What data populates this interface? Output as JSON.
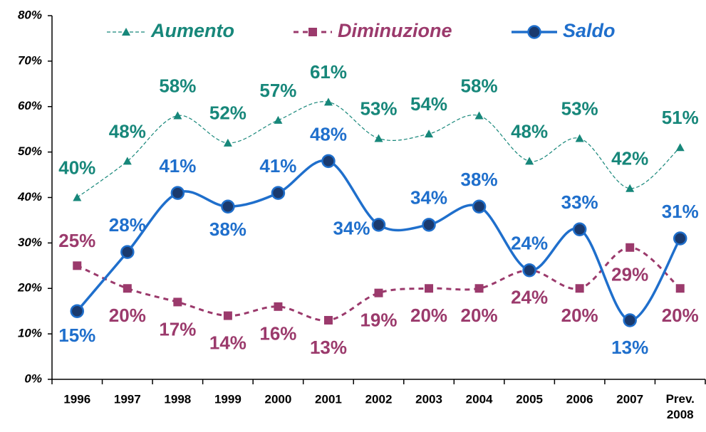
{
  "chart_data": {
    "type": "line",
    "categories": [
      "1996",
      "1997",
      "1998",
      "1999",
      "2000",
      "2001",
      "2002",
      "2003",
      "2004",
      "2005",
      "2006",
      "2007",
      "Prev. 2008"
    ],
    "ylim": [
      0,
      80
    ],
    "yticks": [
      {
        "value": 0,
        "label": "0%"
      },
      {
        "value": 10,
        "label": "10%"
      },
      {
        "value": 20,
        "label": "20%"
      },
      {
        "value": 30,
        "label": "30%"
      },
      {
        "value": 40,
        "label": "40%"
      },
      {
        "value": 50,
        "label": "50%"
      },
      {
        "value": 60,
        "label": "60%"
      },
      {
        "value": 70,
        "label": "70%"
      },
      {
        "value": 80,
        "label": "80%"
      }
    ],
    "legend": "top",
    "series": [
      {
        "name": "Aumento",
        "color": "#17877a",
        "marker": "triangle",
        "dashed": true,
        "values": [
          40,
          48,
          58,
          52,
          57,
          61,
          53,
          54,
          58,
          48,
          53,
          42,
          51
        ],
        "value_labels": [
          "40%",
          "48%",
          "58%",
          "52%",
          "57%",
          "61%",
          "53%",
          "54%",
          "58%",
          "48%",
          "53%",
          "42%",
          "51%"
        ]
      },
      {
        "name": "Diminuzione",
        "color": "#9b3a6c",
        "marker": "square",
        "dashed": true,
        "values": [
          25,
          20,
          17,
          14,
          16,
          13,
          19,
          20,
          20,
          24,
          20,
          29,
          20
        ],
        "value_labels": [
          "25%",
          "20%",
          "17%",
          "14%",
          "16%",
          "13%",
          "19%",
          "20%",
          "20%",
          "24%",
          "20%",
          "29%",
          "20%"
        ]
      },
      {
        "name": "Saldo",
        "color": "#1f6fcc",
        "marker": "circle",
        "dashed": false,
        "values": [
          15,
          28,
          41,
          38,
          41,
          48,
          34,
          34,
          38,
          24,
          33,
          13,
          31
        ],
        "value_labels": [
          "15%",
          "28%",
          "41%",
          "38%",
          "41%",
          "48%",
          "34%",
          "34%",
          "38%",
          "24%",
          "33%",
          "13%",
          "31%"
        ]
      }
    ]
  }
}
